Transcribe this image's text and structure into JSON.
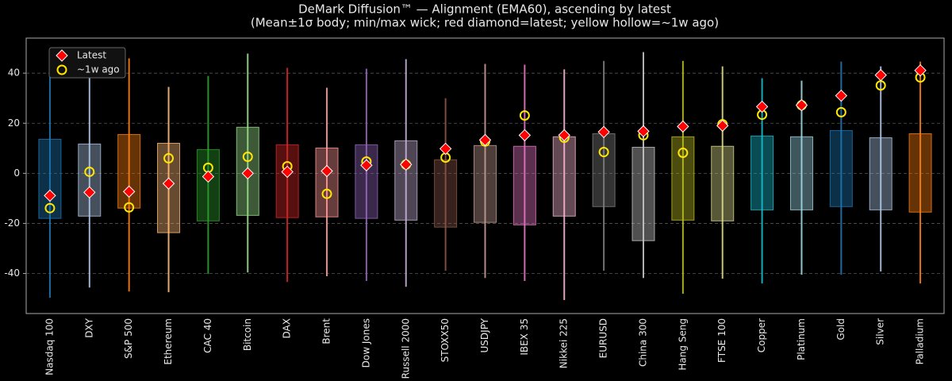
{
  "chart_data": {
    "type": "box",
    "title": "DeMark Diffusion™ — Alignment (EMA60), ascending by latest",
    "subtitle": "(Mean±1σ body; min/max wick; red diamond=latest; yellow hollow=~1w ago)",
    "categories": [
      "Nasdaq 100",
      "DXY",
      "S&P 500",
      "Ethereum",
      "CAC 40",
      "Bitcoin",
      "DAX",
      "Brent",
      "Dow Jones",
      "Russell 2000",
      "STOXX50",
      "USDJPY",
      "IBEX 35",
      "Nikkei 225",
      "EURUSD",
      "China 300",
      "Hang Seng",
      "FTSE 100",
      "Copper",
      "Platinum",
      "Gold",
      "Silver",
      "Palladium"
    ],
    "colors": [
      "#1f77b4",
      "#aec7e8",
      "#ff7f0e",
      "#ffbb78",
      "#2ca02c",
      "#98df8a",
      "#d62728",
      "#ff9896",
      "#9467bd",
      "#c5b0d5",
      "#8c564b",
      "#c49c94",
      "#e377c2",
      "#f7b6d2",
      "#7f7f7f",
      "#c7c7c7",
      "#bcbd22",
      "#dbdb8d",
      "#17becf",
      "#9edae5",
      "#1f77b4",
      "#aec7e8",
      "#ff7f0e"
    ],
    "box_low": [
      -18,
      -17.1,
      -13.9,
      -23.7,
      -19,
      -16.8,
      -17.7,
      -17.4,
      -18,
      -18.7,
      -21.5,
      -19.6,
      -20.6,
      -17.1,
      -13.3,
      -26.9,
      -18.7,
      -19,
      -14.6,
      -14.6,
      -13.3,
      -14.6,
      -15.5
    ],
    "box_high": [
      13.6,
      11.7,
      15.5,
      12,
      9.5,
      18.4,
      11.4,
      10.1,
      11.4,
      13,
      5.4,
      11.1,
      10.8,
      14.6,
      15.8,
      10.4,
      14.6,
      10.8,
      14.9,
      14.6,
      17.1,
      14.2,
      15.8
    ],
    "min": [
      -49.7,
      -45.6,
      -47.2,
      -47.5,
      -40.2,
      -39.6,
      -43.4,
      -41.1,
      -43,
      -45.3,
      -38.9,
      -41.8,
      -43,
      -50.6,
      -38.9,
      -41.8,
      -48.1,
      -42.1,
      -44,
      -40.5,
      -40.5,
      -39.2,
      -44
    ],
    "max": [
      42.7,
      38.9,
      45.9,
      34.5,
      38.9,
      47.8,
      42.1,
      34.2,
      41.8,
      45.6,
      30,
      43.7,
      43.4,
      41.5,
      44.9,
      48.4,
      44.9,
      42.7,
      38,
      37,
      44.6,
      42.7,
      44.6
    ],
    "series": [
      {
        "name": "Latest",
        "color": "#ff0000",
        "values": [
          -8.9,
          -7.6,
          -7.3,
          -4.1,
          -1.3,
          0,
          0.6,
          0.9,
          3.2,
          3.5,
          9.8,
          13.3,
          15.2,
          15.2,
          16.5,
          16.8,
          18.7,
          19,
          26.6,
          27.2,
          31,
          39.2,
          41.1
        ]
      },
      {
        "name": "~1w ago",
        "color": "#ffe600",
        "values": [
          -13.9,
          0.6,
          -13.6,
          6,
          2.2,
          6.6,
          2.8,
          -8.2,
          4.7,
          3.5,
          6.3,
          12.7,
          23.1,
          14.2,
          8.5,
          15.2,
          8.2,
          19.6,
          23.4,
          27.2,
          24.4,
          35.1,
          38.3
        ]
      }
    ],
    "ylim": [
      -56,
      54
    ],
    "yticks": [
      -40,
      -20,
      0,
      20,
      40
    ],
    "grid": true,
    "legend": "upper left"
  }
}
